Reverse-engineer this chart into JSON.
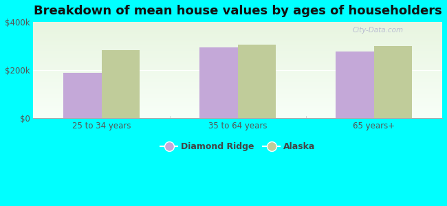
{
  "title": "Breakdown of mean house values by ages of householders",
  "categories": [
    "25 to 34 years",
    "35 to 64 years",
    "65 years+"
  ],
  "diamond_ridge": [
    190000,
    295000,
    278000
  ],
  "alaska": [
    283000,
    305000,
    300000
  ],
  "bar_color_dr": "#c4a8d8",
  "bar_color_ak": "#c0cc9a",
  "background_color": "#00ffff",
  "plot_bg_gradient_top": "#e8f5e0",
  "plot_bg_gradient_bottom": "#f8fff8",
  "ylim": [
    0,
    400000
  ],
  "yticks": [
    0,
    200000,
    400000
  ],
  "ytick_labels": [
    "$0",
    "$200k",
    "$400k"
  ],
  "legend_dr": "Diamond Ridge",
  "legend_ak": "Alaska",
  "bar_width": 0.28,
  "title_fontsize": 13,
  "tick_fontsize": 8.5,
  "legend_fontsize": 9,
  "tick_color": "#555555",
  "grid_color": "#ffffff",
  "watermark": "City-Data.com"
}
